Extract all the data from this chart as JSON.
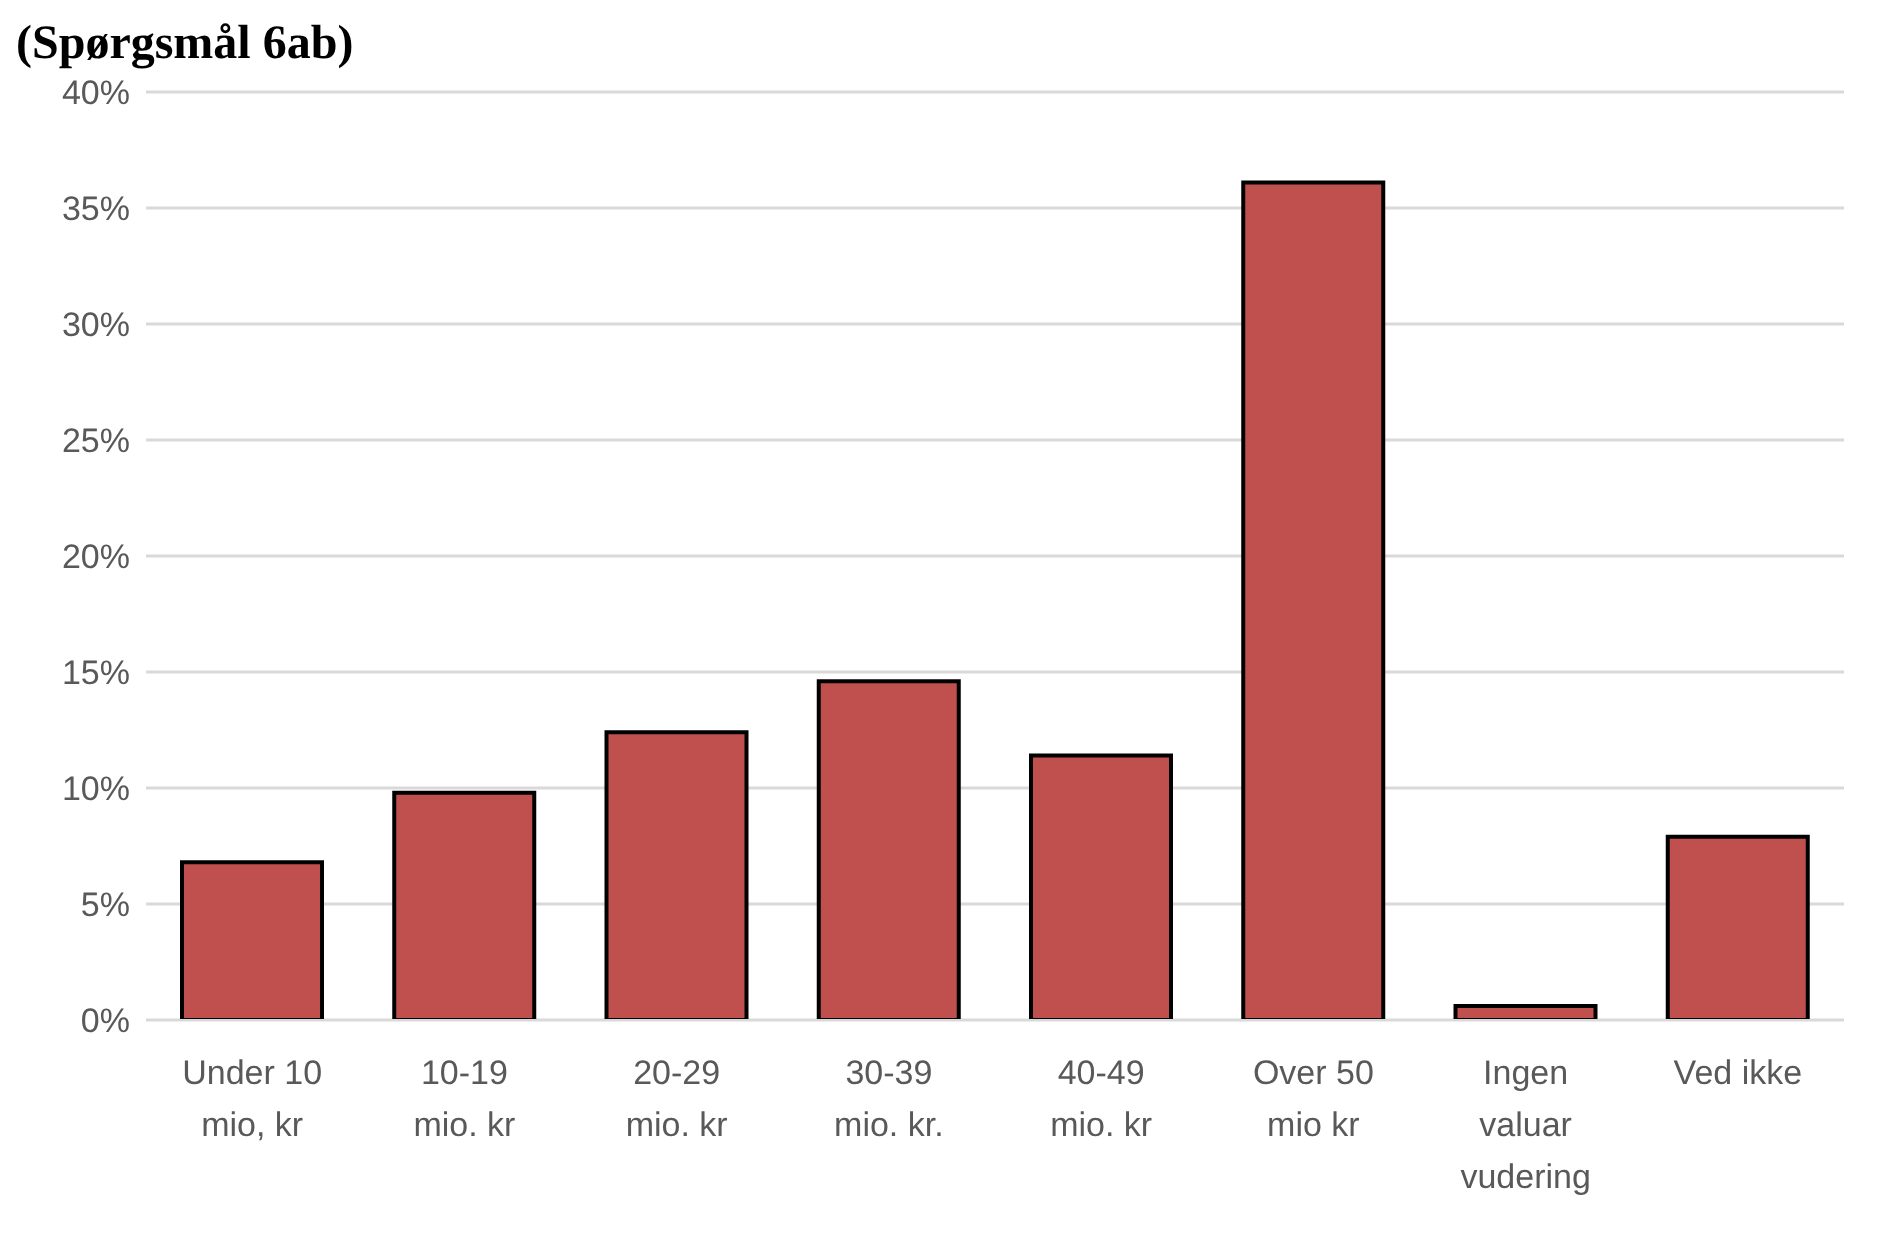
{
  "chart_data": {
    "type": "bar",
    "title": "(Spørgsmål 6ab)",
    "categories": [
      "Under 10 mio, kr",
      "10-19 mio. kr",
      "20-29 mio. kr",
      "30-39 mio. kr.",
      "40-49 mio. kr",
      "Over 50 mio kr",
      "Ingen valuar vudering",
      "Ved ikke"
    ],
    "values": [
      6.8,
      9.8,
      12.4,
      14.6,
      11.4,
      36.1,
      0.6,
      7.9
    ],
    "color": "#c0504d",
    "ylim": [
      0,
      40
    ],
    "yticks": [
      {
        "value": 0,
        "label": "0%"
      },
      {
        "value": 5,
        "label": "5%"
      },
      {
        "value": 10,
        "label": "10%"
      },
      {
        "value": 15,
        "label": "15%"
      },
      {
        "value": 20,
        "label": "20%"
      },
      {
        "value": 25,
        "label": "25%"
      },
      {
        "value": 30,
        "label": "30%"
      },
      {
        "value": 35,
        "label": "35%"
      },
      {
        "value": 40,
        "label": "40%"
      }
    ],
    "grid": "y",
    "legend": false
  }
}
